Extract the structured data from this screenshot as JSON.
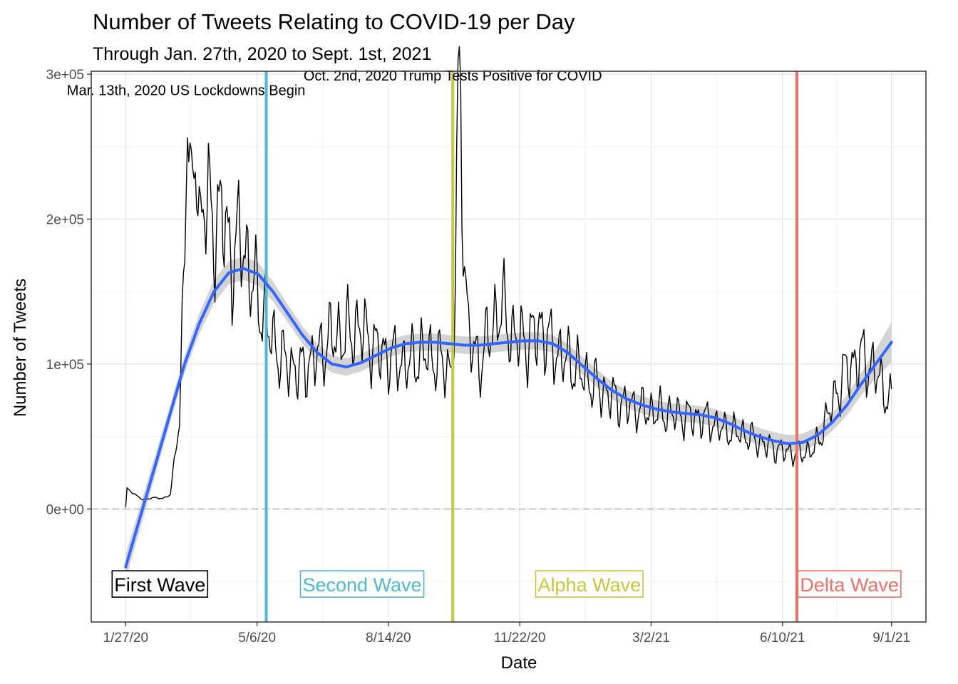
{
  "chart_data": {
    "type": "line",
    "title": "Number of Tweets Relating to COVID-19 per Day",
    "subtitle": "Through Jan. 27th, 2020 to Sept. 1st, 2021",
    "xlabel": "Date",
    "ylabel": "Number of Tweets",
    "x_start": "1/27/20",
    "x_end": "9/1/21",
    "ylim": [
      -78000,
      302000
    ],
    "grid": true,
    "x_ticks": [
      "1/27/20",
      "5/6/20",
      "8/14/20",
      "11/22/20",
      "3/2/21",
      "6/10/21",
      "9/1/21"
    ],
    "y_ticks": [
      {
        "value": 0,
        "label": "0e+00"
      },
      {
        "value": 100000,
        "label": "1e+05"
      },
      {
        "value": 200000,
        "label": "2e+05"
      },
      {
        "value": 300000,
        "label": "3e+05"
      }
    ],
    "reference_line": {
      "y": 0,
      "style": "dashed",
      "color": "#b3b3b3"
    },
    "series": [
      {
        "type": "line",
        "color": "#000000",
        "anchors": [
          [
            "1/27/20",
            1000
          ],
          [
            "1/28/20",
            14000
          ],
          [
            "2/3/20",
            10000
          ],
          [
            "2/10/20",
            6000
          ],
          [
            "2/17/20",
            8000
          ],
          [
            "2/24/20",
            7000
          ],
          [
            "3/1/20",
            10000
          ],
          [
            "3/5/20",
            40000
          ],
          [
            "3/8/20",
            60000
          ],
          [
            "3/10/20",
            130000
          ],
          [
            "3/12/20",
            185000
          ],
          [
            "3/14/20",
            275000
          ],
          [
            "3/17/20",
            215000
          ],
          [
            "3/20/20",
            240000
          ],
          [
            "3/24/20",
            200000
          ],
          [
            "3/28/20",
            215000
          ],
          [
            "4/3/20",
            195000
          ],
          [
            "4/10/20",
            205000
          ],
          [
            "4/17/20",
            170000
          ],
          [
            "4/24/20",
            190000
          ],
          [
            "5/1/20",
            160000
          ],
          [
            "5/9/20",
            140000
          ],
          [
            "5/18/20",
            115000
          ],
          [
            "5/28/20",
            100000
          ],
          [
            "6/8/20",
            95000
          ],
          [
            "6/20/20",
            105000
          ],
          [
            "7/1/20",
            118000
          ],
          [
            "7/12/20",
            120000
          ],
          [
            "7/23/20",
            125000
          ],
          [
            "8/3/20",
            112000
          ],
          [
            "8/14/20",
            105000
          ],
          [
            "8/28/20",
            100000
          ],
          [
            "9/10/20",
            108000
          ],
          [
            "9/22/20",
            102000
          ],
          [
            "10/1/20",
            95000
          ],
          [
            "10/4/20",
            150000
          ],
          [
            "10/6/20",
            275000
          ],
          [
            "10/8/20",
            285000
          ],
          [
            "10/11/20",
            170000
          ],
          [
            "10/14/20",
            120000
          ],
          [
            "10/22/20",
            100000
          ],
          [
            "11/3/20",
            130000
          ],
          [
            "11/8/20",
            140000
          ],
          [
            "11/16/20",
            120000
          ],
          [
            "11/28/20",
            115000
          ],
          [
            "12/8/20",
            125000
          ],
          [
            "12/18/20",
            110000
          ],
          [
            "1/1/21",
            100000
          ],
          [
            "1/12/21",
            90000
          ],
          [
            "1/26/21",
            80000
          ],
          [
            "2/10/21",
            72000
          ],
          [
            "2/26/21",
            68000
          ],
          [
            "3/12/21",
            66000
          ],
          [
            "3/28/21",
            64000
          ],
          [
            "4/12/21",
            62000
          ],
          [
            "4/26/21",
            55000
          ],
          [
            "5/10/21",
            52000
          ],
          [
            "5/26/21",
            45000
          ],
          [
            "6/10/21",
            40000
          ],
          [
            "6/24/21",
            38000
          ],
          [
            "7/5/21",
            42000
          ],
          [
            "7/16/21",
            68000
          ],
          [
            "7/28/21",
            95000
          ],
          [
            "8/9/21",
            105000
          ],
          [
            "8/20/21",
            95000
          ],
          [
            "9/1/21",
            72000
          ]
        ]
      },
      {
        "type": "smooth",
        "color": "#3366ff",
        "band_color": "#cccccc",
        "x_start": "1/27/20",
        "x_end": "9/1/21",
        "values": [
          -40000,
          -5000,
          30000,
          65000,
          100000,
          128000,
          150000,
          163000,
          166000,
          162000,
          150000,
          135000,
          120000,
          108000,
          100000,
          98000,
          101000,
          106000,
          111000,
          114000,
          115000,
          115000,
          114000,
          113000,
          113000,
          114000,
          115000,
          116000,
          116000,
          114000,
          108000,
          99000,
          90000,
          82000,
          76000,
          72000,
          69000,
          67000,
          66000,
          65000,
          63000,
          59000,
          54000,
          50000,
          47000,
          45000,
          46000,
          51000,
          60000,
          72000,
          87000,
          101000,
          115000
        ],
        "band_halfwidth": [
          9000,
          8000,
          7000,
          6000,
          6000,
          7000,
          8000,
          8000,
          8000,
          8000,
          7000,
          6000,
          6000,
          6000,
          6000,
          6000,
          6000,
          6000,
          6000,
          6000,
          6000,
          6000,
          6000,
          6000,
          6000,
          6000,
          6000,
          6000,
          6000,
          6000,
          6000,
          6000,
          6000,
          6000,
          6000,
          6000,
          6000,
          6000,
          6000,
          6000,
          6000,
          6000,
          6000,
          6000,
          6000,
          6000,
          6000,
          6000,
          6000,
          7000,
          8000,
          10000,
          14000
        ]
      }
    ],
    "vlines": [
      {
        "x": "5/13/20",
        "color": "#4fb8d6"
      },
      {
        "x": "10/2/20",
        "color": "#c8c83a"
      },
      {
        "x": "6/21/21",
        "color": "#f07068"
      }
    ],
    "annotations": [
      {
        "text": "Mar. 13th, 2020 US Lockdowns Begin",
        "x": "3/13/20",
        "y": 289000
      },
      {
        "text": "Oct. 2nd, 2020 Trump Tests Positive for COVID",
        "x": "10/2/20",
        "y": 299000
      }
    ],
    "wave_labels": [
      {
        "text": "First Wave",
        "color": "#000000",
        "x": "2/22/20",
        "y": -52000
      },
      {
        "text": "Second Wave",
        "color": "#4fb8d6",
        "x": "7/25/20",
        "y": -52000
      },
      {
        "text": "Alpha Wave",
        "color": "#c8c83a",
        "x": "1/14/21",
        "y": -52000
      },
      {
        "text": "Delta Wave",
        "color": "#f07068",
        "x": "7/31/21",
        "y": -52000
      }
    ]
  }
}
